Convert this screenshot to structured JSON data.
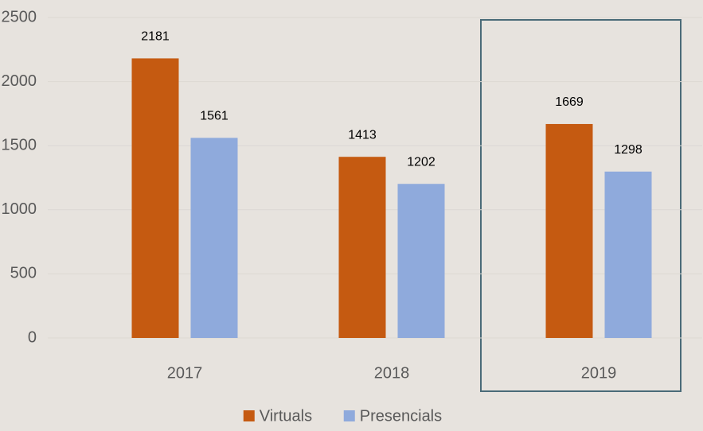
{
  "chart_data": {
    "type": "bar",
    "categories": [
      "2017",
      "2018",
      "2019"
    ],
    "series": [
      {
        "name": "Virtuals",
        "color": "#c55a11",
        "values": [
          2181,
          1413,
          1669
        ]
      },
      {
        "name": "Presencials",
        "color": "#8faadc",
        "values": [
          1561,
          1202,
          1298
        ]
      }
    ],
    "ylim": [
      0,
      2500
    ],
    "yticks": [
      0,
      500,
      1000,
      1500,
      2000,
      2500
    ],
    "grid": true,
    "legend": "bottom"
  }
}
